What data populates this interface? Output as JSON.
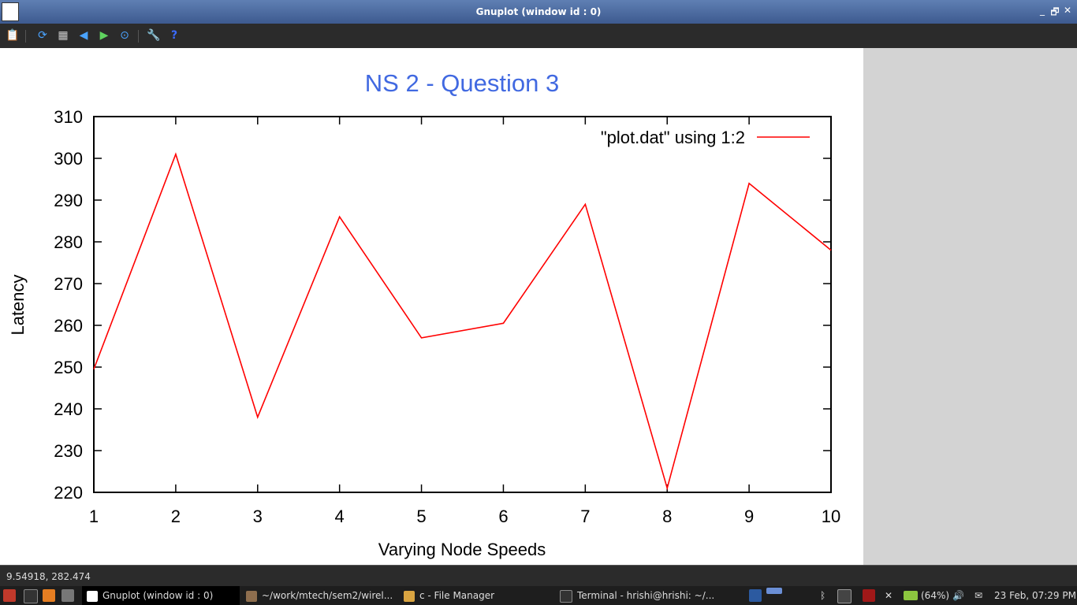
{
  "window": {
    "title": "Gnuplot (window id : 0)",
    "controls": {
      "minimize": "_",
      "restore": "🗗",
      "close": "✕"
    }
  },
  "toolbar": {
    "buttons": [
      {
        "name": "copy-clipboard-icon",
        "glyph": "📋"
      },
      {
        "name": "replot-icon",
        "glyph": "⟳"
      },
      {
        "name": "grid-icon",
        "glyph": "▦"
      },
      {
        "name": "zoom-previous-icon",
        "glyph": "◀"
      },
      {
        "name": "zoom-next-icon",
        "glyph": "▶"
      },
      {
        "name": "autoscale-icon",
        "glyph": "⊙"
      },
      {
        "name": "settings-icon",
        "glyph": "🔧"
      },
      {
        "name": "help-icon",
        "glyph": "?"
      }
    ]
  },
  "chart_data": {
    "type": "line",
    "title": "NS 2 - Question 3",
    "xlabel": "Varying Node Speeds",
    "ylabel": "Latency",
    "xlim": [
      1,
      10
    ],
    "ylim": [
      220,
      310
    ],
    "xticks": [
      "1",
      "2",
      "3",
      "4",
      "5",
      "6",
      "7",
      "8",
      "9",
      "10"
    ],
    "yticks": [
      "220",
      "230",
      "240",
      "250",
      "260",
      "270",
      "280",
      "290",
      "300",
      "310"
    ],
    "series": [
      {
        "name": "\"plot.dat\" using 1:2",
        "color": "#ff0000",
        "x": [
          1,
          2,
          3,
          4,
          5,
          6,
          7,
          8,
          9,
          10
        ],
        "y": [
          249.5,
          301,
          238,
          286,
          257,
          260.5,
          289,
          221,
          294,
          278
        ]
      }
    ],
    "title_color": "#4169e1",
    "legend_position": "top-right"
  },
  "status": {
    "coords": "9.54918,  282.474"
  },
  "taskbar": {
    "tasks": [
      {
        "label": "Gnuplot (window id : 0)",
        "active": true
      },
      {
        "label": "~/work/mtech/sem2/wirel...",
        "active": false
      },
      {
        "label": "c - File Manager",
        "active": false
      },
      {
        "label": "Terminal - hrishi@hrishi: ~/...",
        "active": false
      }
    ],
    "battery": "(64%)",
    "clock": "23 Feb, 07:29 PM"
  }
}
